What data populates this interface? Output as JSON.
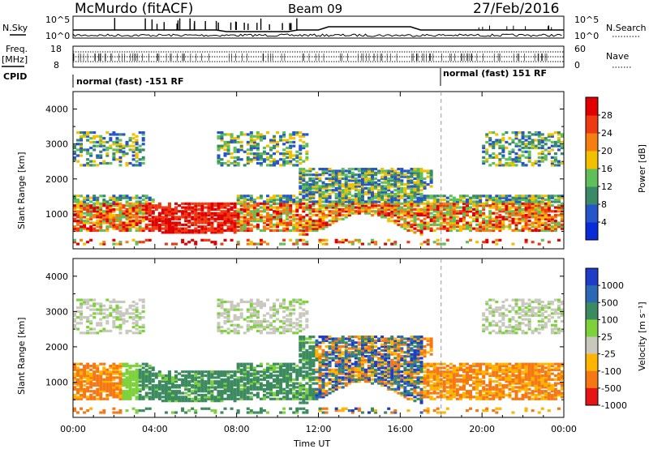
{
  "header": {
    "title": "McMurdo (fitACF)",
    "beam": "Beam 09",
    "date": "27/Feb/2016"
  },
  "top_panel": {
    "left_label": "N.Sky",
    "right_label": "N.Search",
    "left_ticks": [
      "10^5",
      "10^0"
    ],
    "right_ticks": [
      "10^5",
      "10^0"
    ]
  },
  "freq_panel": {
    "left_label": "Freq.",
    "left_unit": "[MHz]",
    "right_label": "Nave",
    "left_ticks": [
      "18",
      "8"
    ],
    "right_ticks": [
      "60",
      "0"
    ]
  },
  "cpid_panel": {
    "label": "CPID",
    "mode1": "normal (fast) -151 RF",
    "mode2": "normal (fast) 151 RF",
    "mode2_start_hour": 18.0
  },
  "chart_data": [
    {
      "type": "heatmap",
      "name": "power",
      "xlabel": "",
      "ylabel": "Slant Range [km]",
      "ylim": [
        0,
        4500
      ],
      "yticks": [
        "1000",
        "2000",
        "3000",
        "4000"
      ],
      "colorbar_label": "Power [dB]",
      "colorbar_ticks": [
        "4",
        "8",
        "12",
        "16",
        "20",
        "24",
        "28"
      ],
      "colorbar_colors": [
        "#0a2bd8",
        "#2555c8",
        "#3a8a6a",
        "#5fbf5a",
        "#f3c000",
        "#f57f10",
        "#ee3a10",
        "#e00000"
      ]
    },
    {
      "type": "heatmap",
      "name": "velocity",
      "xlabel": "Time UT",
      "ylabel": "Slant Range [km]",
      "ylim": [
        0,
        4500
      ],
      "yticks": [
        "1000",
        "2000",
        "3000",
        "4000"
      ],
      "xticks": [
        "00:00",
        "04:00",
        "08:00",
        "12:00",
        "16:00",
        "20:00",
        "00:00"
      ],
      "colorbar_label": "Velocity [m s⁻¹]",
      "colorbar_ticks": [
        "1000",
        "500",
        "100",
        "25",
        "-25",
        "-100",
        "-500",
        "-1000"
      ],
      "colorbar_colors": [
        "#1e3cc8",
        "#2c68b4",
        "#3c8a60",
        "#7dd23c",
        "#c8c8be",
        "#ffb400",
        "#f57814",
        "#e61414"
      ]
    }
  ]
}
